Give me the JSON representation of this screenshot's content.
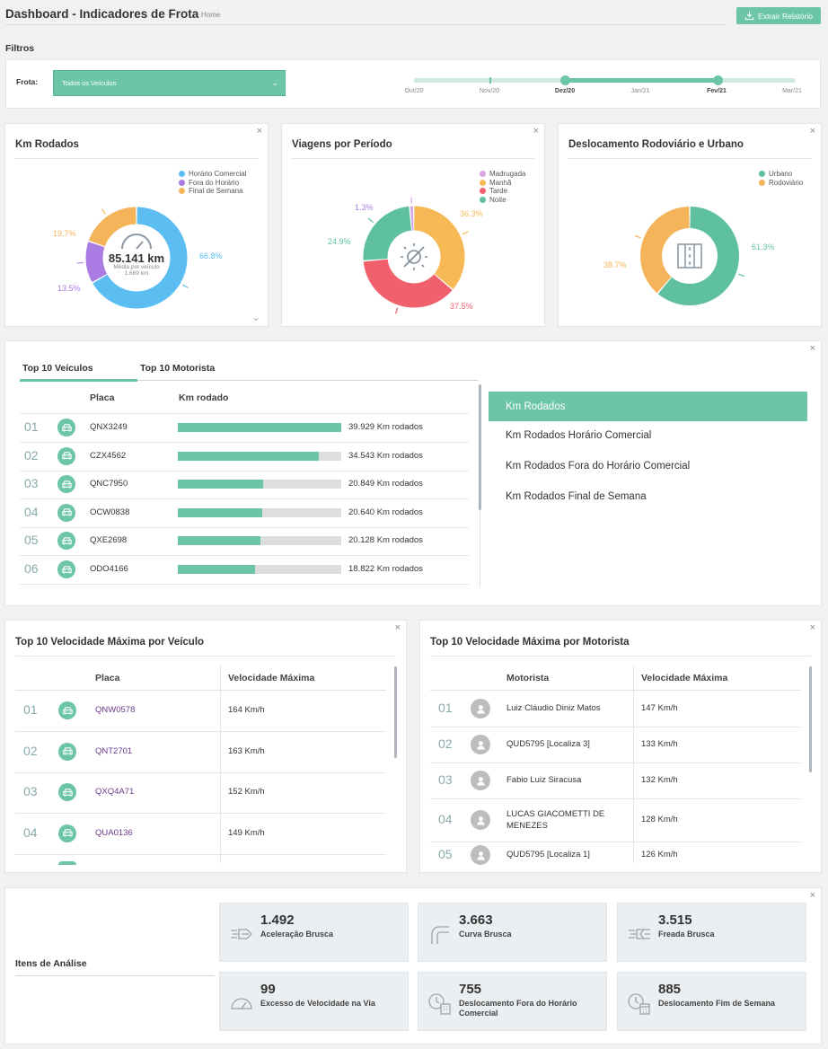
{
  "header": {
    "title": "Dashboard - Indicadores de Frota",
    "breadcrumb": "Home",
    "export_label": "Extrair Relatório"
  },
  "filters": {
    "section_label": "Filtros",
    "frota_label": "Frota:",
    "frota_value": "Todos os Veículos",
    "timeline": [
      "Out/20",
      "Nov/20",
      "Dez/20",
      "Jan/21",
      "Fev/21",
      "Mar/21"
    ],
    "timeline_selected": [
      "Dez/20",
      "Fev/21"
    ]
  },
  "km_rodados": {
    "title": "Km Rodados",
    "center_value": "85.141 km",
    "center_sub1": "Média por veículo",
    "center_sub2": "1.669 km",
    "legend": [
      "Horário Comercial",
      "Fora do Horário",
      "Final de Semana"
    ],
    "colors": [
      "#5bbdf2",
      "#a97be3",
      "#f6b45a"
    ],
    "values": [
      66.8,
      13.5,
      19.7
    ],
    "labels": [
      "66.8%",
      "13.5%",
      "19.7%"
    ]
  },
  "viagens": {
    "title": "Viagens por Período",
    "legend": [
      "Madrugada",
      "Manhã",
      "Tarde",
      "Noite"
    ],
    "colors": [
      "#d8a6e6",
      "#f7b955",
      "#f0606d",
      "#5fc0a0"
    ],
    "values": [
      1.3,
      36.3,
      37.5,
      24.9
    ],
    "labels": [
      "1.3%",
      "36.3%",
      "37.5%",
      "24.9%"
    ]
  },
  "deslocamento": {
    "title": "Deslocamento Rodoviário e Urbano",
    "legend": [
      "Urbano",
      "Rodoviário"
    ],
    "colors": [
      "#5fc0a0",
      "#f6b45a"
    ],
    "values": [
      61.3,
      38.7
    ],
    "labels": [
      "61.3%",
      "38.7%"
    ]
  },
  "top10": {
    "tabs": [
      "Top 10 Veículos",
      "Top 10 Motorista"
    ],
    "col_placa": "Placa",
    "col_km": "Km rodado",
    "rows": [
      {
        "rank": "01",
        "plate": "QNX3249",
        "km": "39.929 Km rodados",
        "pct": 1.0
      },
      {
        "rank": "02",
        "plate": "CZX4562",
        "km": "34.543 Km rodados",
        "pct": 0.865
      },
      {
        "rank": "03",
        "plate": "QNC7950",
        "km": "20.849 Km rodados",
        "pct": 0.522
      },
      {
        "rank": "04",
        "plate": "OCW0838",
        "km": "20.640 Km rodados",
        "pct": 0.517
      },
      {
        "rank": "05",
        "plate": "QXE2698",
        "km": "20.128 Km rodados",
        "pct": 0.504
      },
      {
        "rank": "06",
        "plate": "ODO4166",
        "km": "18.822 Km rodados",
        "pct": 0.471
      }
    ],
    "metrics": [
      "Km Rodados",
      "Km Rodados Horário Comercial",
      "Km Rodados Fora do Horário Comercial",
      "Km Rodados Final de Semana"
    ]
  },
  "vel_veiculo": {
    "title": "Top 10 Velocidade Máxima por Veículo",
    "col_placa": "Placa",
    "col_vel": "Velocidade Máxima",
    "rows": [
      {
        "rank": "01",
        "plate": "QNW0578",
        "vel": "164 Km/h"
      },
      {
        "rank": "02",
        "plate": "QNT2701",
        "vel": "163 Km/h"
      },
      {
        "rank": "03",
        "plate": "QXQ4A71",
        "vel": "152 Km/h"
      },
      {
        "rank": "04",
        "plate": "QUA0136",
        "vel": "149 Km/h"
      }
    ]
  },
  "vel_motorista": {
    "title": "Top 10 Velocidade Máxima por Motorista",
    "col_motorista": "Motorista",
    "col_vel": "Velocidade Máxima",
    "rows": [
      {
        "rank": "01",
        "name": "Luiz Cláudio Diniz Matos",
        "vel": "147 Km/h"
      },
      {
        "rank": "02",
        "name": "QUD5795 [Localiza 3]",
        "vel": "133 Km/h"
      },
      {
        "rank": "03",
        "name": "Fabio Luiz Siracusa",
        "vel": "132 Km/h"
      },
      {
        "rank": "04",
        "name": "LUCAS GIACOMETTI DE MENEZES",
        "vel": "128 Km/h"
      },
      {
        "rank": "05",
        "name": "QUD5795 [Localiza 1]",
        "vel": "126 Km/h"
      }
    ]
  },
  "analise": {
    "title": "Itens de Análise",
    "tiles": [
      {
        "value": "1.492",
        "label": "Aceleração Brusca",
        "icon": "acceleration-icon"
      },
      {
        "value": "3.663",
        "label": "Curva Brusca",
        "icon": "curve-icon"
      },
      {
        "value": "3.515",
        "label": "Freada Brusca",
        "icon": "braking-icon"
      },
      {
        "value": "99",
        "label": "Excesso de Velocidade na Via",
        "icon": "speedometer-icon"
      },
      {
        "value": "755",
        "label": "Deslocamento Fora do Horário Comercial",
        "icon": "clock-building-icon"
      },
      {
        "value": "885",
        "label": "Deslocamento Fim de Semana",
        "icon": "calendar-clock-icon"
      }
    ]
  }
}
